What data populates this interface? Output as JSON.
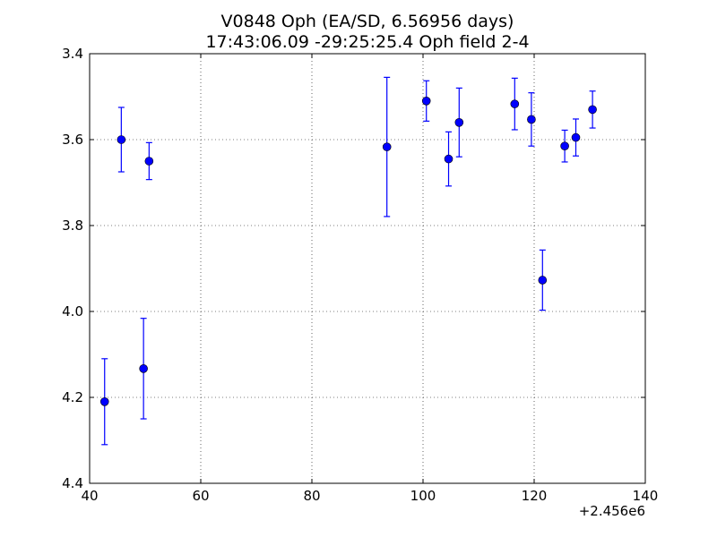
{
  "chart_data": {
    "type": "scatter",
    "title": "V0848 Oph  (EA/SD, 6.56956 days)",
    "subtitle": "17:43:06.09 -29:25:25.4 Oph field 2-4",
    "xlabel": "",
    "ylabel": "",
    "x_offset_label": "+2.456e6",
    "xlim": [
      40,
      140
    ],
    "ylim": [
      4.4,
      3.4
    ],
    "y_inverted": true,
    "x_ticks": [
      "40",
      "60",
      "80",
      "100",
      "120",
      "140"
    ],
    "y_ticks": [
      "3.4",
      "3.6",
      "3.8",
      "4.0",
      "4.2",
      "4.4"
    ],
    "grid": true,
    "marker_color": "#0000ff",
    "series": [
      {
        "points": [
          {
            "x": 42.7,
            "y": 4.21,
            "err": 0.1
          },
          {
            "x": 45.7,
            "y": 3.6,
            "err": 0.075
          },
          {
            "x": 49.7,
            "y": 4.133,
            "err": 0.117
          },
          {
            "x": 50.7,
            "y": 3.65,
            "err": 0.043
          },
          {
            "x": 93.5,
            "y": 3.617,
            "err": 0.162
          },
          {
            "x": 100.6,
            "y": 3.51,
            "err": 0.047
          },
          {
            "x": 104.6,
            "y": 3.645,
            "err": 0.063
          },
          {
            "x": 106.5,
            "y": 3.56,
            "err": 0.08
          },
          {
            "x": 116.5,
            "y": 3.517,
            "err": 0.06
          },
          {
            "x": 119.5,
            "y": 3.553,
            "err": 0.062
          },
          {
            "x": 121.5,
            "y": 3.927,
            "err": 0.07
          },
          {
            "x": 125.5,
            "y": 3.615,
            "err": 0.037
          },
          {
            "x": 127.5,
            "y": 3.595,
            "err": 0.043
          },
          {
            "x": 130.5,
            "y": 3.53,
            "err": 0.043
          }
        ]
      }
    ]
  }
}
